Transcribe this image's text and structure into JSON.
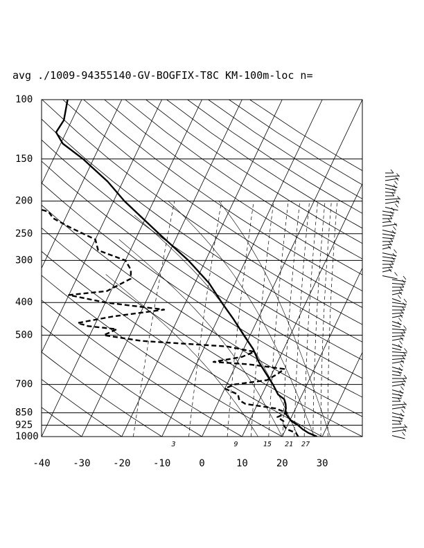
{
  "chart_data": {
    "type": "line",
    "subtype": "skew-t log-p sounding",
    "title": "avg ./1009-94355140-GV-BOGFIX-T8C KM-100m-loc n=",
    "xlabel": "",
    "ylabel": "",
    "x_ticks": [
      "-40",
      "-30",
      "-20",
      "-10",
      "0",
      "10",
      "20",
      "30"
    ],
    "pressure_ticks": [
      "100",
      "150",
      "200",
      "250",
      "300",
      "400",
      "500",
      "700",
      "850",
      "925",
      "1000"
    ],
    "mixing_ratio_labels": [
      "3",
      "9",
      "15",
      "21",
      "27"
    ],
    "xlim_at_1000hPa": [
      -40,
      40
    ],
    "ylim_hPa": [
      1000,
      100
    ],
    "y_scale": "log",
    "skew_x_per_decade": 40,
    "grid": true,
    "series": [
      {
        "style": "solid",
        "quantity": "temperature",
        "points": [
          {
            "p": 1000,
            "t": 28.7
          },
          {
            "p": 975,
            "t": 26.1
          },
          {
            "p": 950,
            "t": 24.2
          },
          {
            "p": 925,
            "t": 22.6
          },
          {
            "p": 900,
            "t": 20.5
          },
          {
            "p": 875,
            "t": 19.2
          },
          {
            "p": 850,
            "t": 17.9
          },
          {
            "p": 825,
            "t": 17.6
          },
          {
            "p": 800,
            "t": 17.0
          },
          {
            "p": 775,
            "t": 16.1
          },
          {
            "p": 750,
            "t": 14.0
          },
          {
            "p": 700,
            "t": 11.5
          },
          {
            "p": 650,
            "t": 8.5
          },
          {
            "p": 600,
            "t": 5.3
          },
          {
            "p": 550,
            "t": 2.4
          },
          {
            "p": 500,
            "t": -1.6
          },
          {
            "p": 450,
            "t": -5.9
          },
          {
            "p": 400,
            "t": -11.0
          },
          {
            "p": 350,
            "t": -16.5
          },
          {
            "p": 300,
            "t": -24.3
          },
          {
            "p": 250,
            "t": -34.8
          },
          {
            "p": 200,
            "t": -47.3
          },
          {
            "p": 175,
            "t": -53.8
          },
          {
            "p": 150,
            "t": -62.6
          },
          {
            "p": 135,
            "t": -69.5
          },
          {
            "p": 125,
            "t": -72.5
          },
          {
            "p": 115,
            "t": -72.0
          },
          {
            "p": 100,
            "t": -73.5
          }
        ]
      },
      {
        "style": "dashed",
        "quantity": "dewpoint",
        "points": [
          {
            "p": 1000,
            "t": 24.0
          },
          {
            "p": 975,
            "t": 23.0
          },
          {
            "p": 950,
            "t": 20.2
          },
          {
            "p": 925,
            "t": 19.0
          },
          {
            "p": 900,
            "t": 18.5
          },
          {
            "p": 875,
            "t": 16.5
          },
          {
            "p": 850,
            "t": 18.4
          },
          {
            "p": 825,
            "t": 15.0
          },
          {
            "p": 800,
            "t": 7.0
          },
          {
            "p": 780,
            "t": 5.0
          },
          {
            "p": 750,
            "t": 4.0
          },
          {
            "p": 720,
            "t": 0.0
          },
          {
            "p": 700,
            "t": 2.0
          },
          {
            "p": 680,
            "t": 9.5
          },
          {
            "p": 650,
            "t": 11.5
          },
          {
            "p": 630,
            "t": 12.5
          },
          {
            "p": 610,
            "t": 3.0
          },
          {
            "p": 600,
            "t": -6.0
          },
          {
            "p": 580,
            "t": 0.5
          },
          {
            "p": 560,
            "t": 3.0
          },
          {
            "p": 540,
            "t": -4.5
          },
          {
            "p": 520,
            "t": -26.5
          },
          {
            "p": 500,
            "t": -36.5
          },
          {
            "p": 480,
            "t": -34.0
          },
          {
            "p": 470,
            "t": -41.5
          },
          {
            "p": 460,
            "t": -44.5
          },
          {
            "p": 440,
            "t": -36.5
          },
          {
            "p": 420,
            "t": -24.5
          },
          {
            "p": 400,
            "t": -40.0
          },
          {
            "p": 380,
            "t": -50.0
          },
          {
            "p": 370,
            "t": -41.0
          },
          {
            "p": 340,
            "t": -36.5
          },
          {
            "p": 320,
            "t": -37.5
          },
          {
            "p": 300,
            "t": -40.0
          },
          {
            "p": 280,
            "t": -48.0
          },
          {
            "p": 260,
            "t": -50.0
          },
          {
            "p": 240,
            "t": -57.5
          },
          {
            "p": 225,
            "t": -63.0
          },
          {
            "p": 215,
            "t": -65.0
          },
          {
            "p": 205,
            "t": -72.0
          },
          {
            "p": 195,
            "t": -78.0
          }
        ]
      }
    ]
  }
}
